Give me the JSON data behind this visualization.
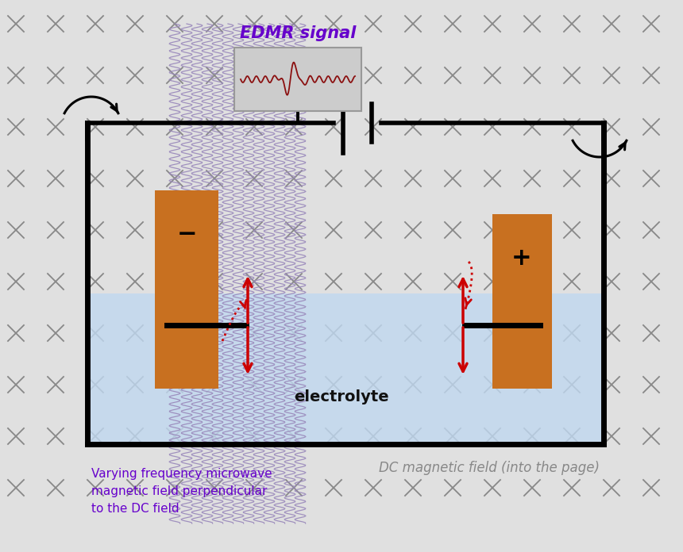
{
  "bg_color": "#e0e0e0",
  "title": "EDMR signal",
  "title_color": "#6600cc",
  "title_fontsize": 15,
  "electrolyte_color": "#c0d8f0",
  "electrode_color": "#c87020",
  "x_symbol_color": "#888888",
  "arrow_color": "#cc0000",
  "microwave_color": "#9988bb",
  "label_microwave": "Varying frequency microwave\nmagnetic field perpendicular\nto the DC field",
  "label_microwave_color": "#6600cc",
  "label_dc": "DC magnetic field (into the page)",
  "label_dc_color": "#888888",
  "label_electrolyte": "electrolyte",
  "label_electrolyte_color": "#111111"
}
